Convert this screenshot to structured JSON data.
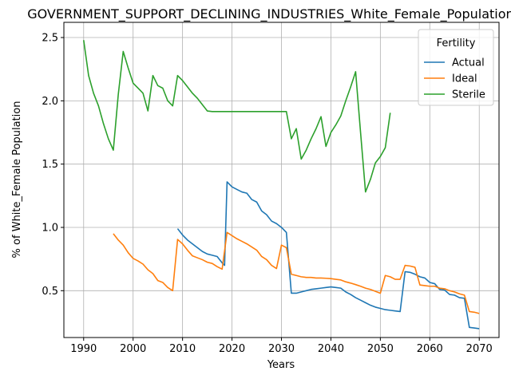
{
  "chart_data": {
    "type": "line",
    "title": "GOVERNMENT_SUPPORT_DECLINING_INDUSTRIES_White_Female_Population_so",
    "xlabel": "Years",
    "ylabel": "% of White_Female Population",
    "xlim": [
      1986,
      2074
    ],
    "ylim": [
      0.13,
      2.62
    ],
    "xticks": [
      1990,
      2000,
      2010,
      2020,
      2030,
      2040,
      2050,
      2060,
      2070
    ],
    "yticks": [
      0.5,
      1.0,
      1.5,
      2.0,
      2.5
    ],
    "xtick_labels": [
      "1990",
      "2000",
      "2010",
      "2020",
      "2030",
      "2040",
      "2050",
      "2060",
      "2070"
    ],
    "ytick_labels": [
      "0.5",
      "1.0",
      "1.5",
      "2.0",
      "2.5"
    ],
    "grid": true,
    "legend": {
      "title": "Fertility",
      "placement": "top-right"
    },
    "series": [
      {
        "name": "Actual",
        "color": "#1f77b4",
        "points": [
          [
            2009,
            0.99
          ],
          [
            2010,
            0.94
          ],
          [
            2011,
            0.9
          ],
          [
            2012,
            0.87
          ],
          [
            2013,
            0.84
          ],
          [
            2014,
            0.81
          ],
          [
            2015,
            0.79
          ],
          [
            2016,
            0.78
          ],
          [
            2017,
            0.77
          ],
          [
            2018,
            0.72
          ],
          [
            2018.5,
            0.7
          ],
          [
            2019,
            1.36
          ],
          [
            2020,
            1.32
          ],
          [
            2021,
            1.3
          ],
          [
            2022,
            1.28
          ],
          [
            2023,
            1.27
          ],
          [
            2024,
            1.22
          ],
          [
            2025,
            1.2
          ],
          [
            2026,
            1.13
          ],
          [
            2027,
            1.1
          ],
          [
            2028,
            1.05
          ],
          [
            2029,
            1.03
          ],
          [
            2030,
            1.0
          ],
          [
            2031,
            0.96
          ],
          [
            2032,
            0.48
          ],
          [
            2033,
            0.48
          ],
          [
            2034,
            0.49
          ],
          [
            2035,
            0.5
          ],
          [
            2036,
            0.51
          ],
          [
            2037,
            0.515
          ],
          [
            2038,
            0.52
          ],
          [
            2039,
            0.525
          ],
          [
            2040,
            0.53
          ],
          [
            2041,
            0.525
          ],
          [
            2042,
            0.52
          ],
          [
            2043,
            0.49
          ],
          [
            2044,
            0.47
          ],
          [
            2045,
            0.445
          ],
          [
            2046,
            0.425
          ],
          [
            2047,
            0.405
          ],
          [
            2048,
            0.385
          ],
          [
            2049,
            0.37
          ],
          [
            2050,
            0.36
          ],
          [
            2051,
            0.35
          ],
          [
            2052,
            0.345
          ],
          [
            2053,
            0.34
          ],
          [
            2054,
            0.335
          ],
          [
            2055,
            0.65
          ],
          [
            2056,
            0.645
          ],
          [
            2057,
            0.63
          ],
          [
            2058,
            0.61
          ],
          [
            2059,
            0.6
          ],
          [
            2060,
            0.565
          ],
          [
            2061,
            0.555
          ],
          [
            2062,
            0.51
          ],
          [
            2063,
            0.505
          ],
          [
            2064,
            0.47
          ],
          [
            2065,
            0.465
          ],
          [
            2066,
            0.445
          ],
          [
            2067,
            0.44
          ],
          [
            2068,
            0.21
          ],
          [
            2069,
            0.205
          ],
          [
            2070,
            0.2
          ]
        ]
      },
      {
        "name": "Ideal",
        "color": "#ff7f0e",
        "points": [
          [
            1996,
            0.95
          ],
          [
            1997,
            0.9
          ],
          [
            1998,
            0.86
          ],
          [
            1999,
            0.8
          ],
          [
            2000,
            0.755
          ],
          [
            2001,
            0.735
          ],
          [
            2002,
            0.71
          ],
          [
            2003,
            0.665
          ],
          [
            2004,
            0.635
          ],
          [
            2005,
            0.58
          ],
          [
            2006,
            0.565
          ],
          [
            2007,
            0.525
          ],
          [
            2008,
            0.5
          ],
          [
            2009,
            0.905
          ],
          [
            2010,
            0.87
          ],
          [
            2011,
            0.82
          ],
          [
            2012,
            0.775
          ],
          [
            2013,
            0.76
          ],
          [
            2014,
            0.745
          ],
          [
            2015,
            0.725
          ],
          [
            2016,
            0.715
          ],
          [
            2017,
            0.69
          ],
          [
            2018,
            0.67
          ],
          [
            2019,
            0.96
          ],
          [
            2020,
            0.935
          ],
          [
            2021,
            0.91
          ],
          [
            2022,
            0.89
          ],
          [
            2023,
            0.87
          ],
          [
            2024,
            0.845
          ],
          [
            2025,
            0.82
          ],
          [
            2026,
            0.77
          ],
          [
            2027,
            0.745
          ],
          [
            2028,
            0.7
          ],
          [
            2029,
            0.675
          ],
          [
            2030,
            0.86
          ],
          [
            2031,
            0.84
          ],
          [
            2032,
            0.63
          ],
          [
            2033,
            0.62
          ],
          [
            2034,
            0.61
          ],
          [
            2035,
            0.605
          ],
          [
            2036,
            0.605
          ],
          [
            2037,
            0.6
          ],
          [
            2038,
            0.6
          ],
          [
            2039,
            0.598
          ],
          [
            2040,
            0.595
          ],
          [
            2041,
            0.59
          ],
          [
            2042,
            0.585
          ],
          [
            2043,
            0.57
          ],
          [
            2044,
            0.56
          ],
          [
            2045,
            0.548
          ],
          [
            2046,
            0.535
          ],
          [
            2047,
            0.52
          ],
          [
            2048,
            0.51
          ],
          [
            2049,
            0.495
          ],
          [
            2050,
            0.48
          ],
          [
            2051,
            0.62
          ],
          [
            2052,
            0.61
          ],
          [
            2053,
            0.59
          ],
          [
            2054,
            0.59
          ],
          [
            2055,
            0.7
          ],
          [
            2056,
            0.695
          ],
          [
            2057,
            0.685
          ],
          [
            2058,
            0.545
          ],
          [
            2059,
            0.54
          ],
          [
            2060,
            0.535
          ],
          [
            2061,
            0.535
          ],
          [
            2062,
            0.52
          ],
          [
            2063,
            0.515
          ],
          [
            2064,
            0.5
          ],
          [
            2065,
            0.49
          ],
          [
            2066,
            0.475
          ],
          [
            2067,
            0.465
          ],
          [
            2068,
            0.335
          ],
          [
            2069,
            0.33
          ],
          [
            2070,
            0.32
          ]
        ]
      },
      {
        "name": "Sterile",
        "color": "#2ca02c",
        "points": [
          [
            1990,
            2.48
          ],
          [
            1991,
            2.2
          ],
          [
            1992,
            2.06
          ],
          [
            1993,
            1.96
          ],
          [
            1994,
            1.82
          ],
          [
            1995,
            1.7
          ],
          [
            1996,
            1.61
          ],
          [
            1997,
            2.05
          ],
          [
            1998,
            2.39
          ],
          [
            1999,
            2.26
          ],
          [
            2000,
            2.14
          ],
          [
            2001,
            2.1
          ],
          [
            2002,
            2.06
          ],
          [
            2003,
            1.92
          ],
          [
            2004,
            2.2
          ],
          [
            2005,
            2.12
          ],
          [
            2006,
            2.1
          ],
          [
            2007,
            2.0
          ],
          [
            2008,
            1.96
          ],
          [
            2009,
            2.2
          ],
          [
            2010,
            2.16
          ],
          [
            2011,
            2.11
          ],
          [
            2012,
            2.06
          ],
          [
            2013,
            2.02
          ],
          [
            2014,
            1.97
          ],
          [
            2015,
            1.92
          ],
          [
            2016,
            1.915
          ],
          [
            2017,
            1.915
          ],
          [
            2020,
            1.915
          ],
          [
            2025,
            1.915
          ],
          [
            2030,
            1.915
          ],
          [
            2031,
            1.915
          ],
          [
            2032,
            1.7
          ],
          [
            2033,
            1.78
          ],
          [
            2034,
            1.54
          ],
          [
            2035,
            1.61
          ],
          [
            2036,
            1.7
          ],
          [
            2037,
            1.78
          ],
          [
            2038,
            1.875
          ],
          [
            2039,
            1.64
          ],
          [
            2040,
            1.75
          ],
          [
            2041,
            1.81
          ],
          [
            2042,
            1.88
          ],
          [
            2043,
            2.0
          ],
          [
            2044,
            2.11
          ],
          [
            2045,
            2.23
          ],
          [
            2046,
            1.75
          ],
          [
            2047,
            1.28
          ],
          [
            2048,
            1.38
          ],
          [
            2049,
            1.51
          ],
          [
            2050,
            1.56
          ],
          [
            2051,
            1.63
          ],
          [
            2052,
            1.905
          ]
        ]
      }
    ]
  }
}
